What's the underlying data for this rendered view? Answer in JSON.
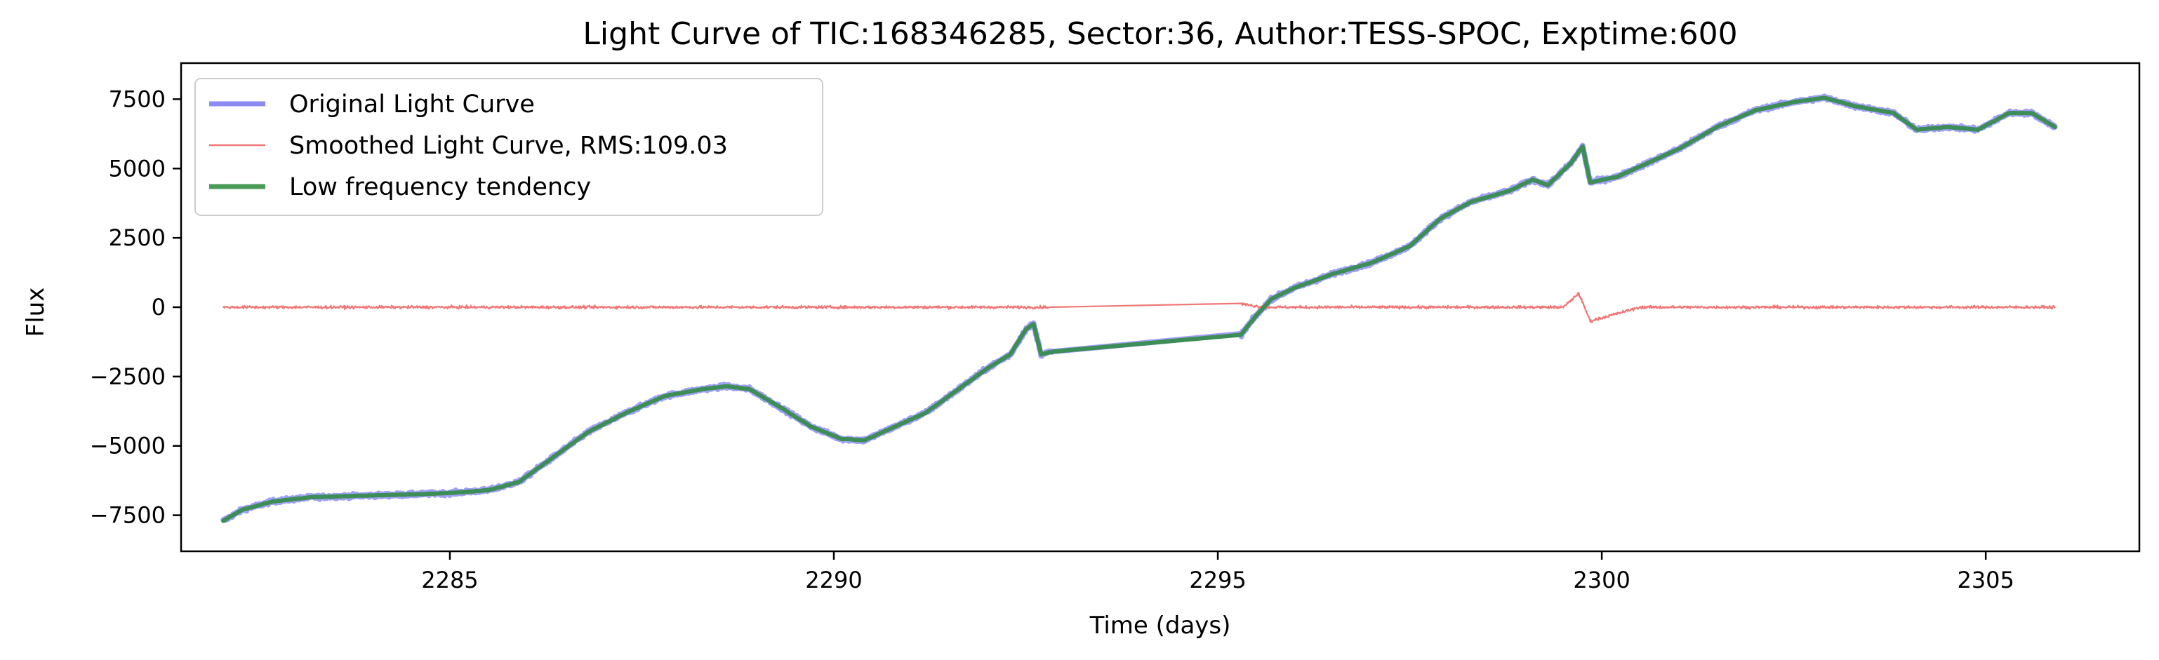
{
  "chart_data": {
    "type": "line",
    "title": "Light Curve of TIC:168346285, Sector:36, Author:TESS-SPOC, Exptime:600",
    "xlabel": "Time (days)",
    "ylabel": "Flux",
    "xlim": [
      2281.5,
      2307.0
    ],
    "ylim": [
      -8800,
      8800
    ],
    "x_ticks": [
      2285,
      2290,
      2295,
      2300,
      2305
    ],
    "y_ticks": [
      -7500,
      -5000,
      -2500,
      0,
      2500,
      5000,
      7500
    ],
    "x_tick_labels": [
      "2285",
      "2290",
      "2295",
      "2300",
      "2305"
    ],
    "y_tick_labels": [
      "−7500",
      "−5000",
      "−2500",
      "0",
      "2500",
      "5000",
      "7500"
    ],
    "grid": false,
    "legend_position": "upper-left",
    "series": [
      {
        "name": "Original Light Curve",
        "color": "#7777f0",
        "points": [
          [
            2282.05,
            -7700
          ],
          [
            2282.3,
            -7300
          ],
          [
            2282.7,
            -7000
          ],
          [
            2283.2,
            -6850
          ],
          [
            2283.8,
            -6800
          ],
          [
            2284.5,
            -6750
          ],
          [
            2285.0,
            -6700
          ],
          [
            2285.5,
            -6600
          ],
          [
            2285.9,
            -6300
          ],
          [
            2286.3,
            -5500
          ],
          [
            2286.8,
            -4500
          ],
          [
            2287.3,
            -3800
          ],
          [
            2287.8,
            -3200
          ],
          [
            2288.3,
            -2950
          ],
          [
            2288.6,
            -2850
          ],
          [
            2288.9,
            -2950
          ],
          [
            2289.3,
            -3600
          ],
          [
            2289.7,
            -4300
          ],
          [
            2290.1,
            -4750
          ],
          [
            2290.4,
            -4800
          ],
          [
            2290.8,
            -4300
          ],
          [
            2291.2,
            -3800
          ],
          [
            2291.6,
            -3000
          ],
          [
            2292.0,
            -2200
          ],
          [
            2292.3,
            -1700
          ],
          [
            2292.5,
            -800
          ],
          [
            2292.6,
            -600
          ],
          [
            2292.7,
            -1700
          ],
          [
            2292.85,
            -1600
          ],
          [
            2295.3,
            -1000
          ],
          [
            2295.5,
            -300
          ],
          [
            2295.7,
            300
          ],
          [
            2296.0,
            700
          ],
          [
            2296.5,
            1200
          ],
          [
            2297.0,
            1600
          ],
          [
            2297.5,
            2200
          ],
          [
            2297.9,
            3200
          ],
          [
            2298.3,
            3800
          ],
          [
            2298.8,
            4200
          ],
          [
            2299.1,
            4600
          ],
          [
            2299.3,
            4400
          ],
          [
            2299.6,
            5200
          ],
          [
            2299.75,
            5800
          ],
          [
            2299.85,
            4500
          ],
          [
            2300.2,
            4700
          ],
          [
            2300.6,
            5200
          ],
          [
            2301.0,
            5700
          ],
          [
            2301.5,
            6500
          ],
          [
            2302.0,
            7100
          ],
          [
            2302.5,
            7400
          ],
          [
            2302.9,
            7550
          ],
          [
            2303.3,
            7250
          ],
          [
            2303.8,
            7000
          ],
          [
            2304.1,
            6400
          ],
          [
            2304.5,
            6500
          ],
          [
            2304.9,
            6400
          ],
          [
            2305.3,
            7000
          ],
          [
            2305.6,
            7000
          ],
          [
            2305.9,
            6500
          ]
        ]
      },
      {
        "name": "Smoothed Light Curve, RMS:109.03",
        "color": "#f07878",
        "rms": 109.03,
        "points": [
          [
            2282.05,
            0
          ],
          [
            2283.0,
            0
          ],
          [
            2284.0,
            0
          ],
          [
            2285.0,
            0
          ],
          [
            2286.0,
            0
          ],
          [
            2287.0,
            0
          ],
          [
            2288.0,
            0
          ],
          [
            2289.0,
            0
          ],
          [
            2290.0,
            0
          ],
          [
            2291.0,
            0
          ],
          [
            2292.0,
            0
          ],
          [
            2292.8,
            0
          ],
          [
            2295.3,
            120
          ],
          [
            2295.6,
            0
          ],
          [
            2296.5,
            0
          ],
          [
            2297.5,
            0
          ],
          [
            2298.5,
            0
          ],
          [
            2299.5,
            0
          ],
          [
            2299.7,
            500
          ],
          [
            2299.85,
            -500
          ],
          [
            2300.5,
            0
          ],
          [
            2301.5,
            0
          ],
          [
            2302.5,
            0
          ],
          [
            2303.5,
            0
          ],
          [
            2304.5,
            0
          ],
          [
            2305.5,
            0
          ],
          [
            2305.9,
            0
          ]
        ]
      },
      {
        "name": "Low frequency tendency",
        "color": "#2a8a3a",
        "points": [
          [
            2282.05,
            -7700
          ],
          [
            2282.3,
            -7300
          ],
          [
            2282.7,
            -7000
          ],
          [
            2283.2,
            -6850
          ],
          [
            2283.8,
            -6800
          ],
          [
            2284.5,
            -6750
          ],
          [
            2285.0,
            -6700
          ],
          [
            2285.5,
            -6600
          ],
          [
            2285.9,
            -6300
          ],
          [
            2286.3,
            -5500
          ],
          [
            2286.8,
            -4500
          ],
          [
            2287.3,
            -3800
          ],
          [
            2287.8,
            -3200
          ],
          [
            2288.3,
            -2950
          ],
          [
            2288.6,
            -2850
          ],
          [
            2288.9,
            -2950
          ],
          [
            2289.3,
            -3600
          ],
          [
            2289.7,
            -4300
          ],
          [
            2290.1,
            -4750
          ],
          [
            2290.4,
            -4800
          ],
          [
            2290.8,
            -4300
          ],
          [
            2291.2,
            -3800
          ],
          [
            2291.6,
            -3000
          ],
          [
            2292.0,
            -2200
          ],
          [
            2292.3,
            -1700
          ],
          [
            2292.5,
            -800
          ],
          [
            2292.6,
            -600
          ],
          [
            2292.7,
            -1700
          ],
          [
            2292.85,
            -1600
          ],
          [
            2295.3,
            -1000
          ],
          [
            2295.5,
            -300
          ],
          [
            2295.7,
            300
          ],
          [
            2296.0,
            700
          ],
          [
            2296.5,
            1200
          ],
          [
            2297.0,
            1600
          ],
          [
            2297.5,
            2200
          ],
          [
            2297.9,
            3200
          ],
          [
            2298.3,
            3800
          ],
          [
            2298.8,
            4200
          ],
          [
            2299.1,
            4600
          ],
          [
            2299.3,
            4400
          ],
          [
            2299.6,
            5200
          ],
          [
            2299.75,
            5800
          ],
          [
            2299.85,
            4500
          ],
          [
            2300.2,
            4700
          ],
          [
            2300.6,
            5200
          ],
          [
            2301.0,
            5700
          ],
          [
            2301.5,
            6500
          ],
          [
            2302.0,
            7100
          ],
          [
            2302.5,
            7400
          ],
          [
            2302.9,
            7550
          ],
          [
            2303.3,
            7250
          ],
          [
            2303.8,
            7000
          ],
          [
            2304.1,
            6400
          ],
          [
            2304.5,
            6500
          ],
          [
            2304.9,
            6400
          ],
          [
            2305.3,
            7000
          ],
          [
            2305.6,
            7000
          ],
          [
            2305.9,
            6500
          ]
        ]
      }
    ]
  }
}
